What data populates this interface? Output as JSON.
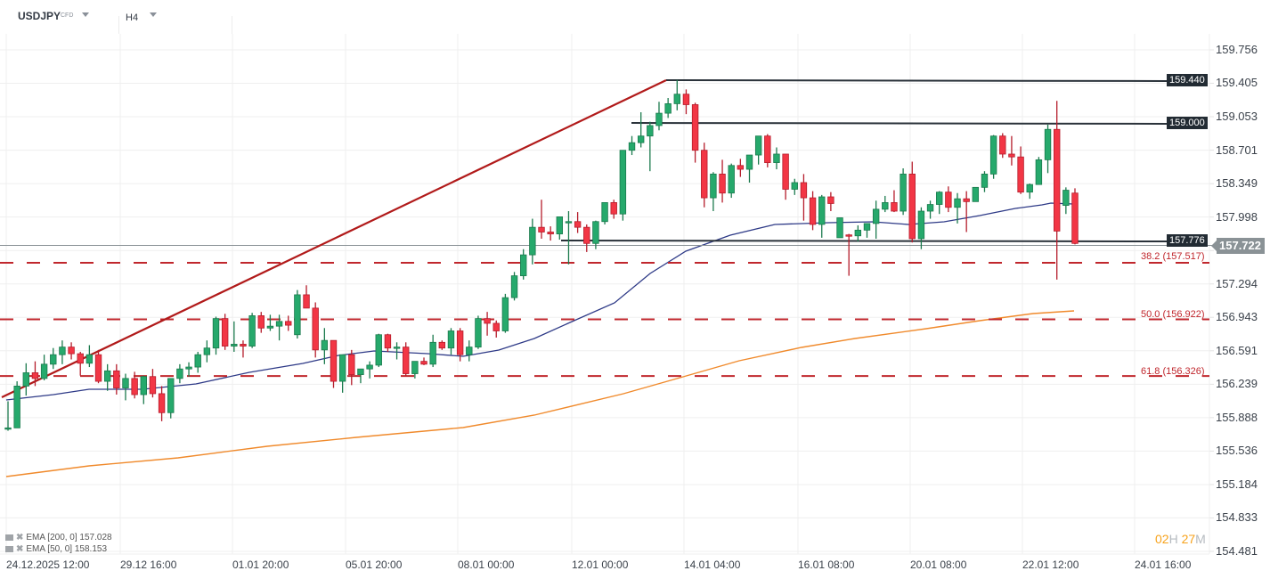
{
  "header": {
    "symbol": "USDJPY",
    "instrument_type": "CFD",
    "timeframe": "H4"
  },
  "y_axis": {
    "ticks": [
      "159.756",
      "159.405",
      "159.053",
      "158.701",
      "158.349",
      "157.998",
      "157.646",
      "157.294",
      "156.943",
      "156.591",
      "156.239",
      "155.888",
      "155.536",
      "155.184",
      "154.833",
      "154.481"
    ]
  },
  "x_axis": {
    "ticks": [
      "24.12.2025  12:00",
      "29.12  16:00",
      "01.01  20:00",
      "05.01  20:00",
      "08.01  00:00",
      "12.01  00:00",
      "14.01  04:00",
      "16.01  08:00",
      "20.01  08:00",
      "22.01  12:00",
      "24.01  16:00"
    ]
  },
  "level_tags": {
    "high": "159.440",
    "resistance": "159.000",
    "support": "157.776",
    "current": "157.722"
  },
  "fib_labels": {
    "f382": "38.2 (157.517)",
    "f500": "50.0 (156.922)",
    "f618": "61.8 (156.326)"
  },
  "legend": {
    "ema200": "EMA [200,  0] 157.028",
    "ema50": "EMA [50,  0] 158.153"
  },
  "timer": {
    "h": "02",
    "h_unit": "H",
    "m": "27",
    "m_unit": "M"
  },
  "colors": {
    "bull": "#26a96c",
    "bear": "#f23645",
    "ema50": "#2e3a87",
    "ema200": "#f08a2c",
    "fib": "#c0272d",
    "trend": "#b11a1a",
    "level": "#2a323a"
  },
  "chart_data": {
    "type": "candlestick",
    "title": "USDJPY CFD H4",
    "xlabel": "",
    "ylabel": "",
    "ylim": [
      154.4,
      159.9
    ],
    "grid": true,
    "legend": [
      "EMA [200, 0] 157.028",
      "EMA [50, 0] 158.153"
    ],
    "annotations": [
      {
        "type": "hline",
        "value": 159.44,
        "label": "159.440"
      },
      {
        "type": "hline",
        "value": 159.0,
        "label": "159.000"
      },
      {
        "type": "hline",
        "value": 157.776,
        "label": "157.776"
      },
      {
        "type": "fib",
        "value": 157.517,
        "label": "38.2 (157.517)"
      },
      {
        "type": "fib",
        "value": 156.922,
        "label": "50.0 (156.922)"
      },
      {
        "type": "fib",
        "value": 156.326,
        "label": "61.8 (156.326)"
      },
      {
        "type": "trendline",
        "from": [
          156.17,
          "24.12.2025 12:00"
        ],
        "to": [
          159.44,
          "13.01"
        ]
      },
      {
        "type": "last_price",
        "value": 157.722
      }
    ],
    "candles": [
      [
        155.77,
        156.06,
        155.75,
        155.78
      ],
      [
        155.78,
        156.27,
        155.78,
        156.22
      ],
      [
        156.22,
        156.46,
        156.12,
        156.36
      ],
      [
        156.36,
        156.48,
        156.22,
        156.3
      ],
      [
        156.3,
        156.55,
        156.28,
        156.45
      ],
      [
        156.45,
        156.62,
        156.4,
        156.55
      ],
      [
        156.55,
        156.7,
        156.45,
        156.63
      ],
      [
        156.63,
        156.68,
        156.5,
        156.56
      ],
      [
        156.56,
        156.58,
        156.33,
        156.46
      ],
      [
        156.46,
        156.65,
        156.42,
        156.55
      ],
      [
        156.55,
        156.6,
        156.25,
        156.27
      ],
      [
        156.27,
        156.45,
        156.17,
        156.38
      ],
      [
        156.38,
        156.45,
        156.13,
        156.2
      ],
      [
        156.2,
        156.35,
        156.07,
        156.3
      ],
      [
        156.3,
        156.37,
        156.09,
        156.13
      ],
      [
        156.13,
        156.33,
        156.03,
        156.32
      ],
      [
        156.32,
        156.4,
        156.1,
        156.14
      ],
      [
        156.14,
        156.22,
        155.85,
        155.94
      ],
      [
        155.94,
        156.3,
        155.88,
        156.3
      ],
      [
        156.3,
        156.45,
        156.25,
        156.4
      ],
      [
        156.4,
        156.47,
        156.32,
        156.42
      ],
      [
        156.42,
        156.58,
        156.36,
        156.55
      ],
      [
        156.55,
        156.7,
        156.47,
        156.62
      ],
      [
        156.62,
        156.95,
        156.55,
        156.93
      ],
      [
        156.93,
        156.98,
        156.6,
        156.64
      ],
      [
        156.64,
        156.9,
        156.58,
        156.66
      ],
      [
        156.66,
        156.7,
        156.52,
        156.64
      ],
      [
        156.64,
        156.99,
        156.62,
        156.96
      ],
      [
        156.96,
        157.0,
        156.78,
        156.83
      ],
      [
        156.83,
        156.97,
        156.8,
        156.85
      ],
      [
        156.85,
        156.97,
        156.7,
        156.9
      ],
      [
        156.9,
        156.96,
        156.8,
        156.86
      ],
      [
        156.76,
        157.23,
        156.72,
        157.18
      ],
      [
        157.18,
        157.28,
        157.04,
        157.04
      ],
      [
        157.04,
        157.1,
        156.52,
        156.6
      ],
      [
        156.6,
        156.83,
        156.45,
        156.7
      ],
      [
        156.7,
        156.7,
        156.2,
        156.27
      ],
      [
        156.27,
        156.55,
        156.15,
        156.55
      ],
      [
        156.55,
        156.6,
        156.23,
        156.34
      ],
      [
        156.34,
        156.4,
        156.25,
        156.4
      ],
      [
        156.4,
        156.48,
        156.3,
        156.44
      ],
      [
        156.44,
        156.77,
        156.42,
        156.76
      ],
      [
        156.76,
        156.77,
        156.58,
        156.62
      ],
      [
        156.62,
        156.68,
        156.5,
        156.63
      ],
      [
        156.63,
        156.68,
        156.33,
        156.35
      ],
      [
        156.35,
        156.48,
        156.3,
        156.48
      ],
      [
        156.48,
        156.52,
        156.44,
        156.45
      ],
      [
        156.45,
        156.76,
        156.42,
        156.68
      ],
      [
        156.68,
        156.7,
        156.6,
        156.62
      ],
      [
        156.62,
        156.83,
        156.55,
        156.8
      ],
      [
        156.8,
        156.83,
        156.48,
        156.55
      ],
      [
        156.55,
        156.7,
        156.48,
        156.63
      ],
      [
        156.63,
        156.96,
        156.61,
        156.93
      ],
      [
        156.93,
        157.0,
        156.75,
        156.88
      ],
      [
        156.88,
        156.91,
        156.73,
        156.8
      ],
      [
        156.8,
        157.19,
        156.78,
        157.15
      ],
      [
        157.15,
        157.42,
        157.12,
        157.38
      ],
      [
        157.38,
        157.66,
        157.34,
        157.6
      ],
      [
        157.6,
        157.98,
        157.5,
        157.89
      ],
      [
        157.89,
        158.18,
        157.77,
        157.84
      ],
      [
        157.84,
        157.9,
        157.75,
        157.82
      ],
      [
        157.82,
        158.0,
        157.76,
        158.0
      ],
      [
        157.95,
        158.06,
        157.5,
        157.95
      ],
      [
        157.95,
        158.05,
        157.83,
        157.89
      ],
      [
        157.89,
        157.92,
        157.63,
        157.72
      ],
      [
        157.72,
        157.96,
        157.66,
        157.95
      ],
      [
        157.95,
        158.15,
        157.92,
        158.15
      ],
      [
        158.15,
        158.18,
        157.98,
        158.03
      ],
      [
        158.03,
        158.7,
        157.96,
        158.7
      ],
      [
        158.7,
        158.85,
        158.65,
        158.78
      ],
      [
        158.78,
        159.1,
        158.73,
        158.85
      ],
      [
        158.85,
        159.0,
        158.48,
        158.96
      ],
      [
        158.96,
        159.21,
        158.91,
        159.09
      ],
      [
        159.09,
        159.25,
        159.04,
        159.19
      ],
      [
        159.19,
        159.44,
        159.12,
        159.29
      ],
      [
        159.29,
        159.34,
        159.08,
        159.18
      ],
      [
        159.18,
        159.2,
        158.57,
        158.7
      ],
      [
        158.7,
        158.78,
        158.1,
        158.2
      ],
      [
        158.2,
        158.47,
        158.06,
        158.45
      ],
      [
        158.45,
        158.6,
        158.15,
        158.25
      ],
      [
        158.25,
        158.56,
        158.2,
        158.54
      ],
      [
        158.54,
        158.61,
        158.42,
        158.5
      ],
      [
        158.5,
        158.62,
        158.36,
        158.65
      ],
      [
        158.65,
        158.85,
        158.55,
        158.85
      ],
      [
        158.85,
        158.87,
        158.52,
        158.57
      ],
      [
        158.57,
        158.73,
        158.5,
        158.66
      ],
      [
        158.66,
        158.66,
        158.18,
        158.29
      ],
      [
        158.29,
        158.4,
        158.23,
        158.36
      ],
      [
        158.36,
        158.45,
        157.96,
        158.2
      ],
      [
        158.2,
        158.27,
        157.86,
        157.92
      ],
      [
        157.92,
        158.23,
        157.78,
        158.21
      ],
      [
        158.21,
        158.26,
        158.06,
        158.14
      ],
      [
        157.78,
        157.99,
        157.81,
        157.99
      ],
      [
        157.81,
        157.82,
        157.38,
        157.8
      ],
      [
        157.8,
        157.91,
        157.74,
        157.86
      ],
      [
        157.86,
        157.93,
        157.78,
        157.93
      ],
      [
        157.93,
        158.17,
        157.77,
        158.08
      ],
      [
        158.08,
        158.22,
        158.05,
        158.15
      ],
      [
        158.15,
        158.28,
        158.05,
        158.06
      ],
      [
        158.06,
        158.51,
        158.02,
        158.45
      ],
      [
        158.45,
        158.58,
        157.73,
        157.77
      ],
      [
        157.77,
        158.1,
        157.66,
        158.06
      ],
      [
        158.06,
        158.17,
        157.98,
        158.13
      ],
      [
        158.13,
        158.27,
        158.03,
        158.26
      ],
      [
        158.26,
        158.32,
        158.05,
        158.1
      ],
      [
        158.1,
        158.25,
        157.93,
        158.19
      ],
      [
        158.19,
        158.27,
        157.84,
        158.16
      ],
      [
        158.16,
        158.31,
        158.16,
        158.31
      ],
      [
        158.31,
        158.48,
        158.26,
        158.45
      ],
      [
        158.45,
        158.86,
        158.4,
        158.85
      ],
      [
        158.85,
        158.88,
        158.62,
        158.66
      ],
      [
        158.66,
        158.85,
        158.54,
        158.63
      ],
      [
        158.63,
        158.74,
        158.24,
        158.26
      ],
      [
        158.26,
        158.35,
        158.19,
        158.34
      ],
      [
        158.34,
        158.63,
        158.34,
        158.6
      ],
      [
        158.6,
        158.97,
        158.46,
        158.92
      ],
      [
        158.92,
        159.22,
        157.34,
        157.85
      ],
      [
        158.12,
        158.31,
        158.03,
        158.28
      ],
      [
        158.25,
        158.3,
        157.71,
        157.72
      ]
    ]
  }
}
